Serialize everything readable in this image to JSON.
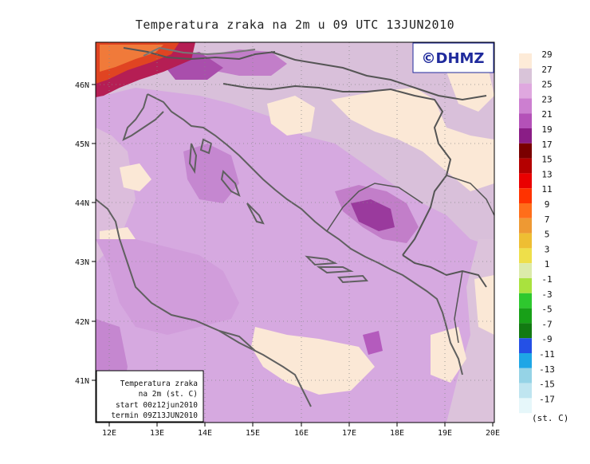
{
  "title": "Temperatura zraka na 2m u 09 UTC 13JUN2010",
  "brand": "©DHMZ",
  "lon_ticks": [
    "12E",
    "13E",
    "14E",
    "15E",
    "16E",
    "17E",
    "18E",
    "19E",
    "20E"
  ],
  "lat_ticks": [
    "41N",
    "42N",
    "43N",
    "44N",
    "45N",
    "46N"
  ],
  "info_box": {
    "line1": "Temperatura zraka",
    "line2": "na 2m (st. C)",
    "line3": "start 00z12jun2010",
    "line4": "termin 09Z13JUN2010"
  },
  "legend": {
    "unit": "(st. C)",
    "labels": [
      "29",
      "27",
      "25",
      "23",
      "21",
      "19",
      "17",
      "15",
      "13",
      "11",
      "9",
      "7",
      "5",
      "3",
      "1",
      "-1",
      "-3",
      "-5",
      "-7",
      "-9",
      "-11",
      "-13",
      "-15",
      "-17"
    ],
    "colors": [
      "#fdebd8",
      "#d9c4d9",
      "#dfa8df",
      "#cc7fd0",
      "#b451b8",
      "#8a1d86",
      "#7a0000",
      "#b40000",
      "#ea0000",
      "#ff3300",
      "#ff6e1a",
      "#ee9933",
      "#eebe33",
      "#eedf4a",
      "#dcebaa",
      "#a9e23e",
      "#2ec82e",
      "#18a018",
      "#127a12",
      "#2450e6",
      "#1ea6e6",
      "#95d3e6",
      "#bfe5f0",
      "#e6f7fa"
    ]
  },
  "colors": {
    "sea": "#d5a7e2",
    "land": "#e4c3e3",
    "border": "#555555",
    "coast": "#666666"
  }
}
